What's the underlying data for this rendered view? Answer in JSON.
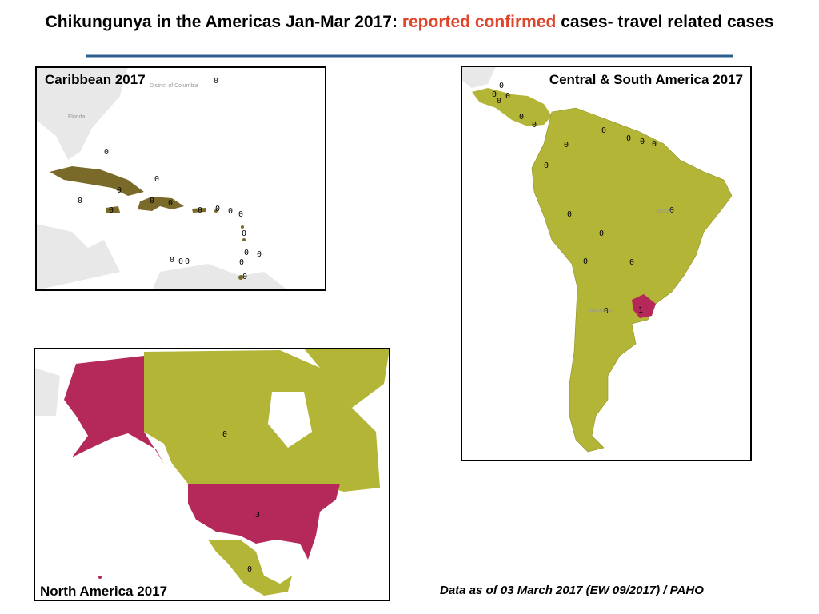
{
  "title": {
    "lead": "Chikungunya in the Americas Jan-Mar 2017:",
    "highlight": "reported confirmed",
    "tail": "cases- travel related cases"
  },
  "panels": [
    {
      "title": "Caribbean 2017",
      "place_labels": [
        "District of Columbia",
        "Florida"
      ],
      "case_counts": [
        0,
        0,
        0,
        0,
        0,
        0,
        0,
        0,
        0,
        0,
        0,
        0,
        0,
        0,
        0,
        0,
        0,
        0,
        0,
        0
      ]
    },
    {
      "title": "Central & South America  2017",
      "place_labels": [
        "Brazil",
        "Argentina"
      ],
      "case_counts": [
        0,
        0,
        0,
        0,
        0,
        0,
        0,
        0,
        0,
        0,
        0,
        0,
        0,
        0,
        0,
        0,
        0,
        0,
        1
      ]
    },
    {
      "title": "North America  2017",
      "place_labels": [],
      "case_counts": [
        0,
        3,
        0
      ]
    }
  ],
  "footer": "Data as of 03 March 2017 (EW 09/2017) / PAHO"
}
